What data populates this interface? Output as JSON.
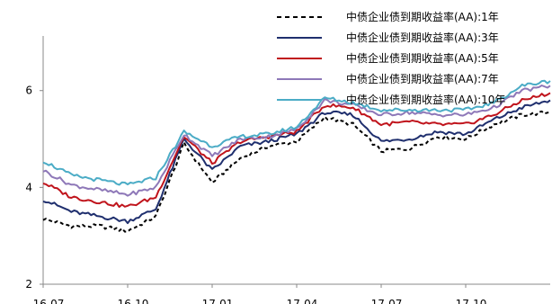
{
  "chart_data": {
    "type": "line",
    "title": "",
    "xlabel": "",
    "ylabel": "",
    "x_ticks": [
      "16-07",
      "16-10",
      "17-01",
      "17-04",
      "17-07",
      "17-10"
    ],
    "y_ticks": [
      "2",
      "4",
      "6"
    ],
    "ylim": [
      2,
      7.5
    ],
    "xlim": [
      "2016-07",
      "2018-01"
    ],
    "grid": false,
    "legend_position": "top-right",
    "x": [
      "2016-07",
      "2016-08",
      "2016-09",
      "2016-10",
      "2016-11",
      "2016-12",
      "2017-01",
      "2017-02",
      "2017-03",
      "2017-04",
      "2017-05",
      "2017-06",
      "2017-07",
      "2017-08",
      "2017-09",
      "2017-10",
      "2017-11",
      "2017-12",
      "2018-01"
    ],
    "series": [
      {
        "name": "中债企业债到期收益率(AA):1年",
        "color": "#000000",
        "dash": true,
        "values": [
          3.35,
          3.2,
          3.2,
          3.1,
          3.4,
          4.9,
          4.1,
          4.6,
          4.85,
          4.95,
          5.45,
          5.3,
          4.75,
          4.8,
          5.05,
          5.0,
          5.3,
          5.5,
          5.55
        ]
      },
      {
        "name": "中债企业债到期收益率(AA):3年",
        "color": "#1f2f6e",
        "dash": false,
        "values": [
          3.75,
          3.5,
          3.4,
          3.3,
          3.55,
          5.0,
          4.35,
          4.85,
          4.95,
          5.1,
          5.55,
          5.5,
          4.95,
          5.0,
          5.15,
          5.1,
          5.4,
          5.65,
          5.8
        ]
      },
      {
        "name": "中债企业债到期收益率(AA):5年",
        "color": "#c0141c",
        "dash": false,
        "values": [
          4.1,
          3.8,
          3.7,
          3.6,
          3.8,
          5.05,
          4.5,
          4.95,
          5.05,
          5.15,
          5.7,
          5.65,
          5.3,
          5.35,
          5.3,
          5.3,
          5.5,
          5.8,
          5.95
        ]
      },
      {
        "name": "中债企业债到期收益率(AA):7年",
        "color": "#8e78b8",
        "dash": false,
        "values": [
          4.35,
          4.05,
          3.95,
          3.85,
          4.0,
          5.1,
          4.65,
          5.0,
          5.05,
          5.2,
          5.8,
          5.7,
          5.5,
          5.55,
          5.5,
          5.5,
          5.65,
          6.0,
          6.1
        ]
      },
      {
        "name": "中债企业债到期收益率(AA):10年",
        "color": "#4bacc6",
        "dash": false,
        "values": [
          4.55,
          4.25,
          4.15,
          4.05,
          4.2,
          5.15,
          4.85,
          5.05,
          5.1,
          5.25,
          5.85,
          5.75,
          5.6,
          5.6,
          5.6,
          5.6,
          5.75,
          6.1,
          6.2
        ]
      }
    ]
  }
}
